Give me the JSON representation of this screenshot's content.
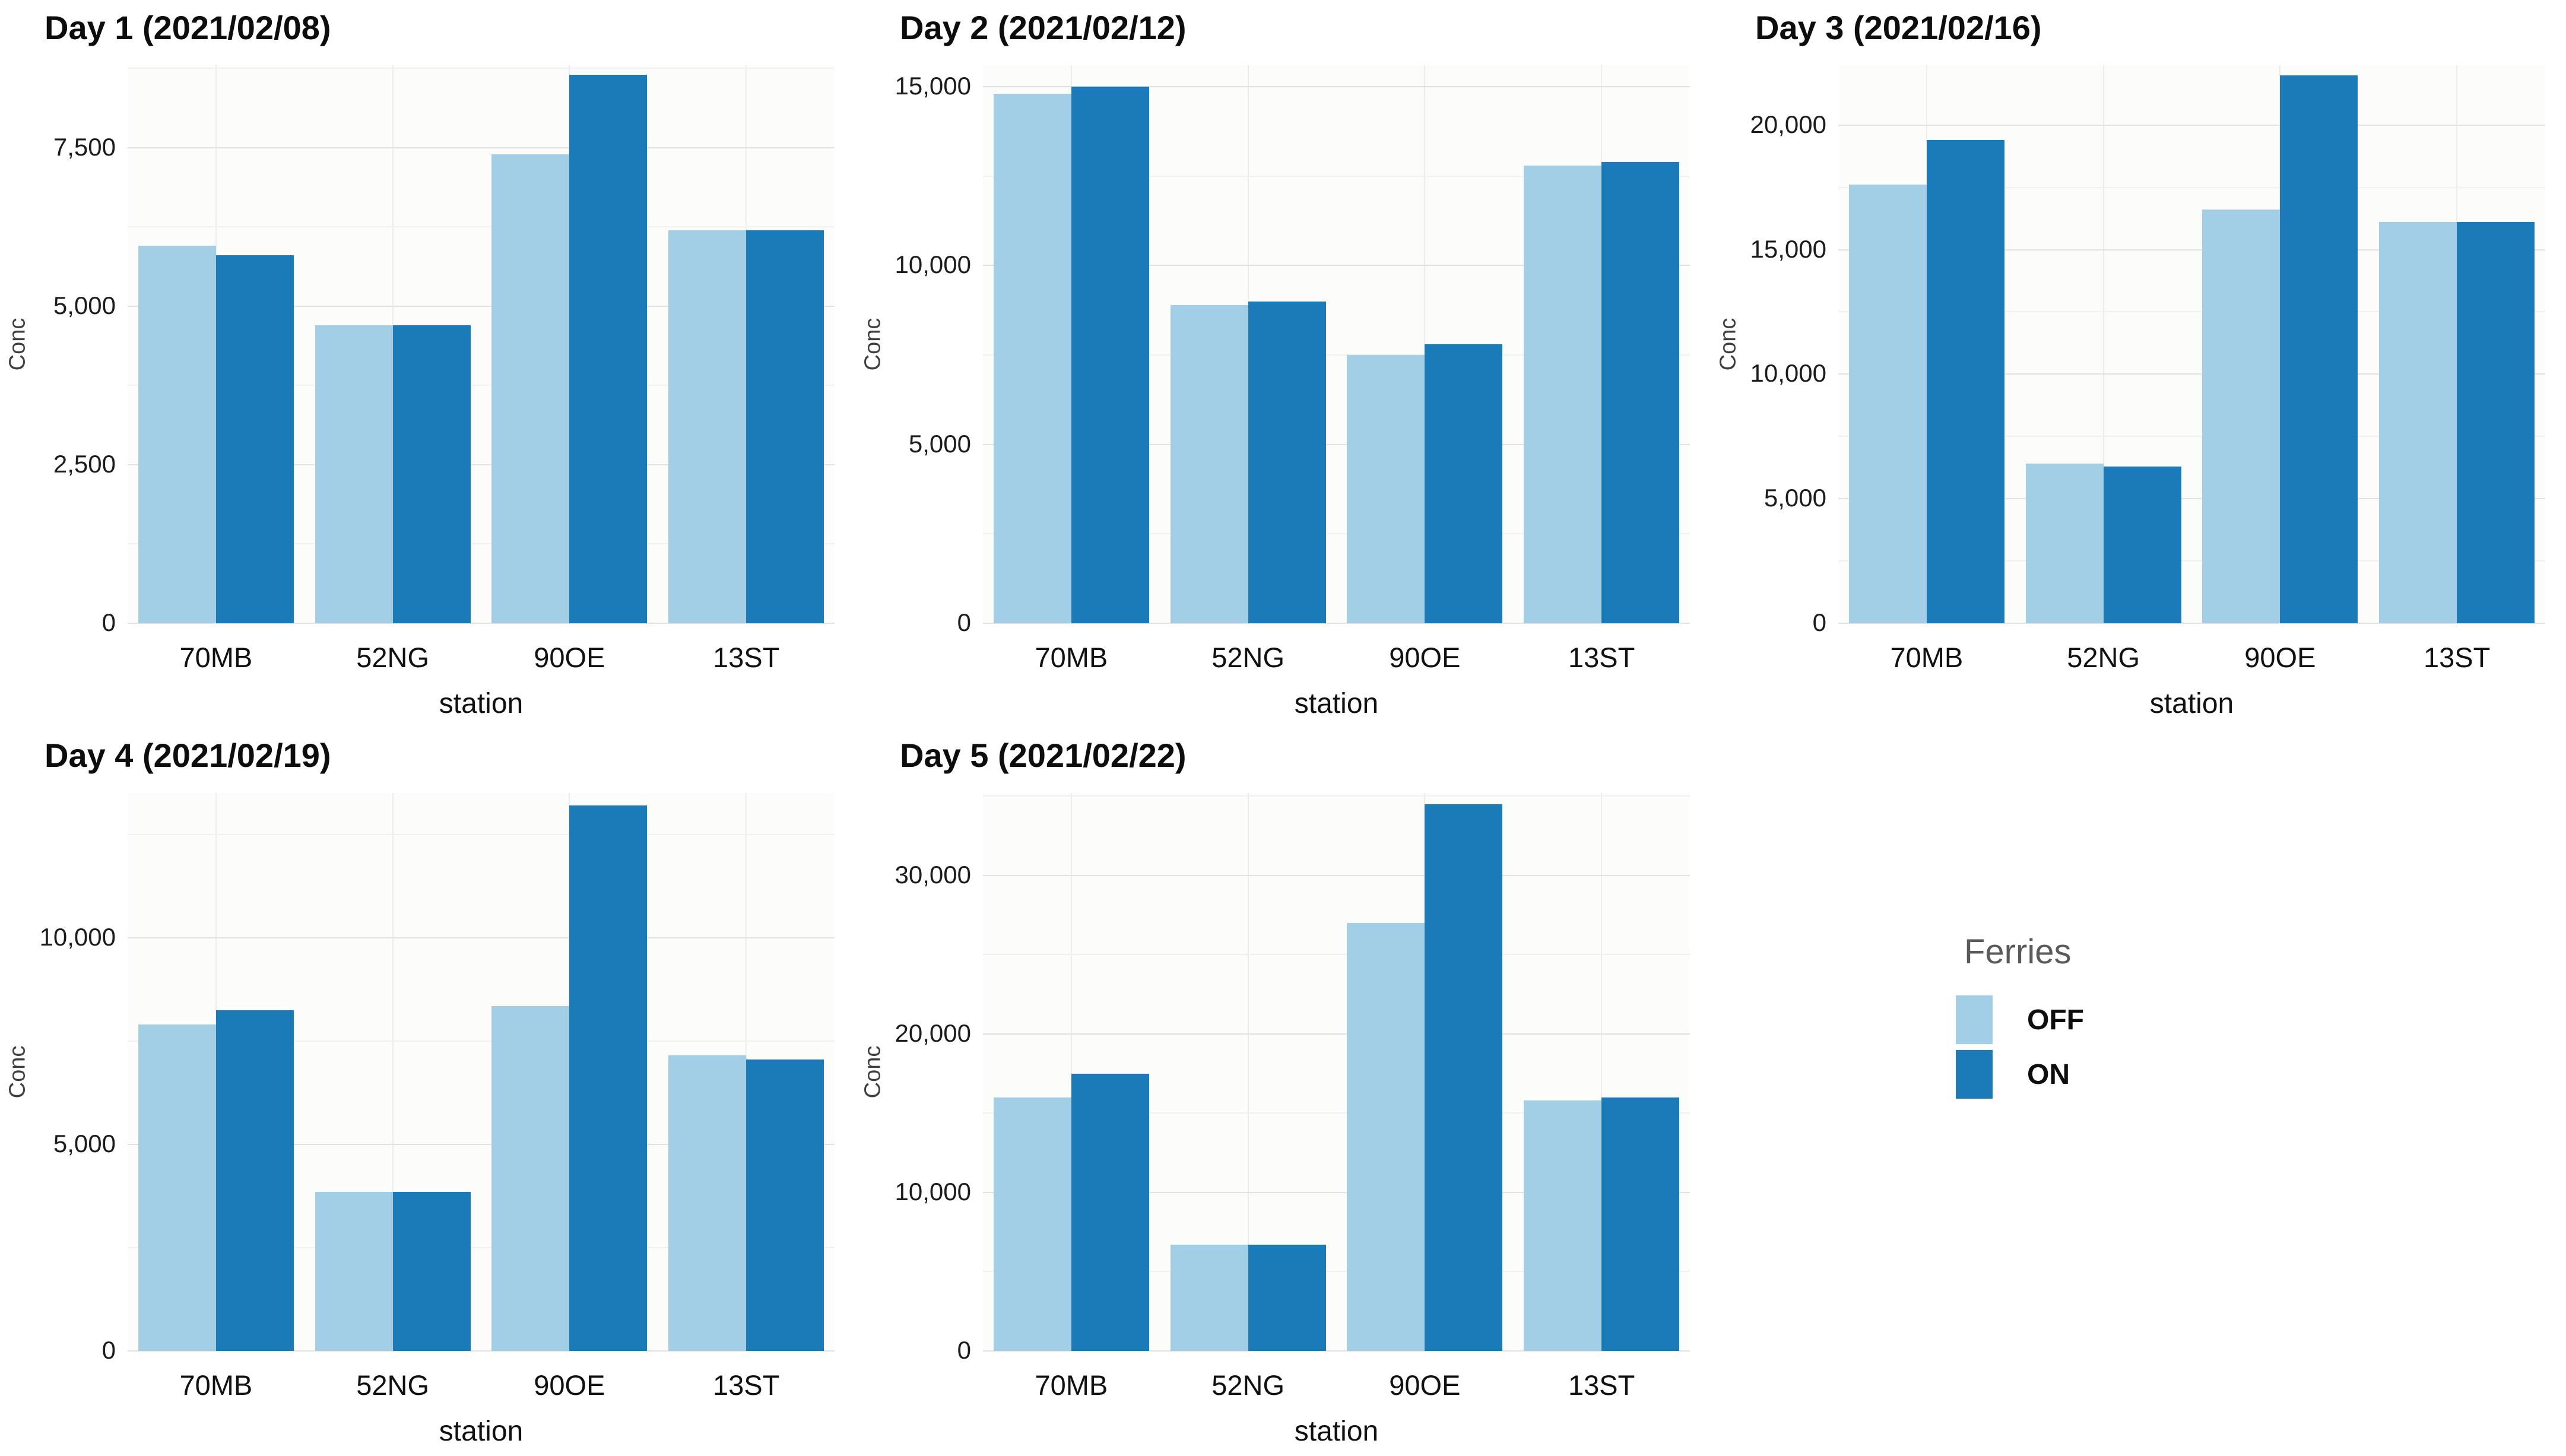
{
  "figure": {
    "background": "#ffffff",
    "layout": "3x2-grid-of-small-multiples"
  },
  "style": {
    "off_color": "#a2cfe6",
    "on_color": "#1b7ab8",
    "grid_major_color": "#e2e2e2",
    "grid_minor_color": "#f1f1f1",
    "vgrid_color": "#ececec"
  },
  "legend": {
    "title": "Ferries",
    "position": "bottom-right",
    "items": [
      {
        "label": "OFF",
        "color": "#a2cfe6"
      },
      {
        "label": "ON",
        "color": "#1b7ab8"
      }
    ]
  },
  "chart_data": [
    {
      "type": "bar",
      "title": "Day 1 (2021/02/08)",
      "xlabel": "station",
      "ylabel": "Conc",
      "categories": [
        "70MB",
        "52NG",
        "90OE",
        "13ST"
      ],
      "series": [
        {
          "name": "OFF",
          "values": [
            5950,
            4700,
            7400,
            6200
          ]
        },
        {
          "name": "ON",
          "values": [
            5800,
            4700,
            8650,
            6200
          ]
        }
      ],
      "yticks": [
        0,
        2500,
        5000,
        7500
      ],
      "minor_step": 1250,
      "ylim": [
        0,
        8800
      ],
      "grid": true
    },
    {
      "type": "bar",
      "title": "Day 2 (2021/02/12)",
      "xlabel": "station",
      "ylabel": "Conc",
      "categories": [
        "70MB",
        "52NG",
        "90OE",
        "13ST"
      ],
      "series": [
        {
          "name": "OFF",
          "values": [
            14800,
            8900,
            7500,
            12800
          ]
        },
        {
          "name": "ON",
          "values": [
            15000,
            9000,
            7800,
            12900
          ]
        }
      ],
      "yticks": [
        0,
        5000,
        10000,
        15000
      ],
      "minor_step": 2500,
      "ylim": [
        0,
        15600
      ],
      "grid": true
    },
    {
      "type": "bar",
      "title": "Day 3 (2021/02/16)",
      "xlabel": "station",
      "ylabel": "Conc",
      "categories": [
        "70MB",
        "52NG",
        "90OE",
        "13ST"
      ],
      "series": [
        {
          "name": "OFF",
          "values": [
            17600,
            6400,
            16600,
            16100
          ]
        },
        {
          "name": "ON",
          "values": [
            19400,
            6300,
            22000,
            16100
          ]
        }
      ],
      "yticks": [
        0,
        5000,
        10000,
        15000,
        20000
      ],
      "minor_step": 2500,
      "ylim": [
        0,
        22400
      ],
      "grid": true
    },
    {
      "type": "bar",
      "title": "Day 4 (2021/02/19)",
      "xlabel": "station",
      "ylabel": "Conc",
      "categories": [
        "70MB",
        "52NG",
        "90OE",
        "13ST"
      ],
      "series": [
        {
          "name": "OFF",
          "values": [
            7900,
            3850,
            8350,
            7150
          ]
        },
        {
          "name": "ON",
          "values": [
            8250,
            3850,
            13200,
            7050
          ]
        }
      ],
      "yticks": [
        0,
        5000,
        10000
      ],
      "minor_step": 2500,
      "ylim": [
        0,
        13500
      ],
      "grid": true
    },
    {
      "type": "bar",
      "title": "Day 5 (2021/02/22)",
      "xlabel": "station",
      "ylabel": "Conc",
      "categories": [
        "70MB",
        "52NG",
        "90OE",
        "13ST"
      ],
      "series": [
        {
          "name": "OFF",
          "values": [
            16000,
            6700,
            27000,
            15800
          ]
        },
        {
          "name": "ON",
          "values": [
            17500,
            6700,
            34500,
            16000
          ]
        }
      ],
      "yticks": [
        0,
        10000,
        20000,
        30000
      ],
      "minor_step": 5000,
      "ylim": [
        0,
        35200
      ],
      "grid": true
    }
  ]
}
